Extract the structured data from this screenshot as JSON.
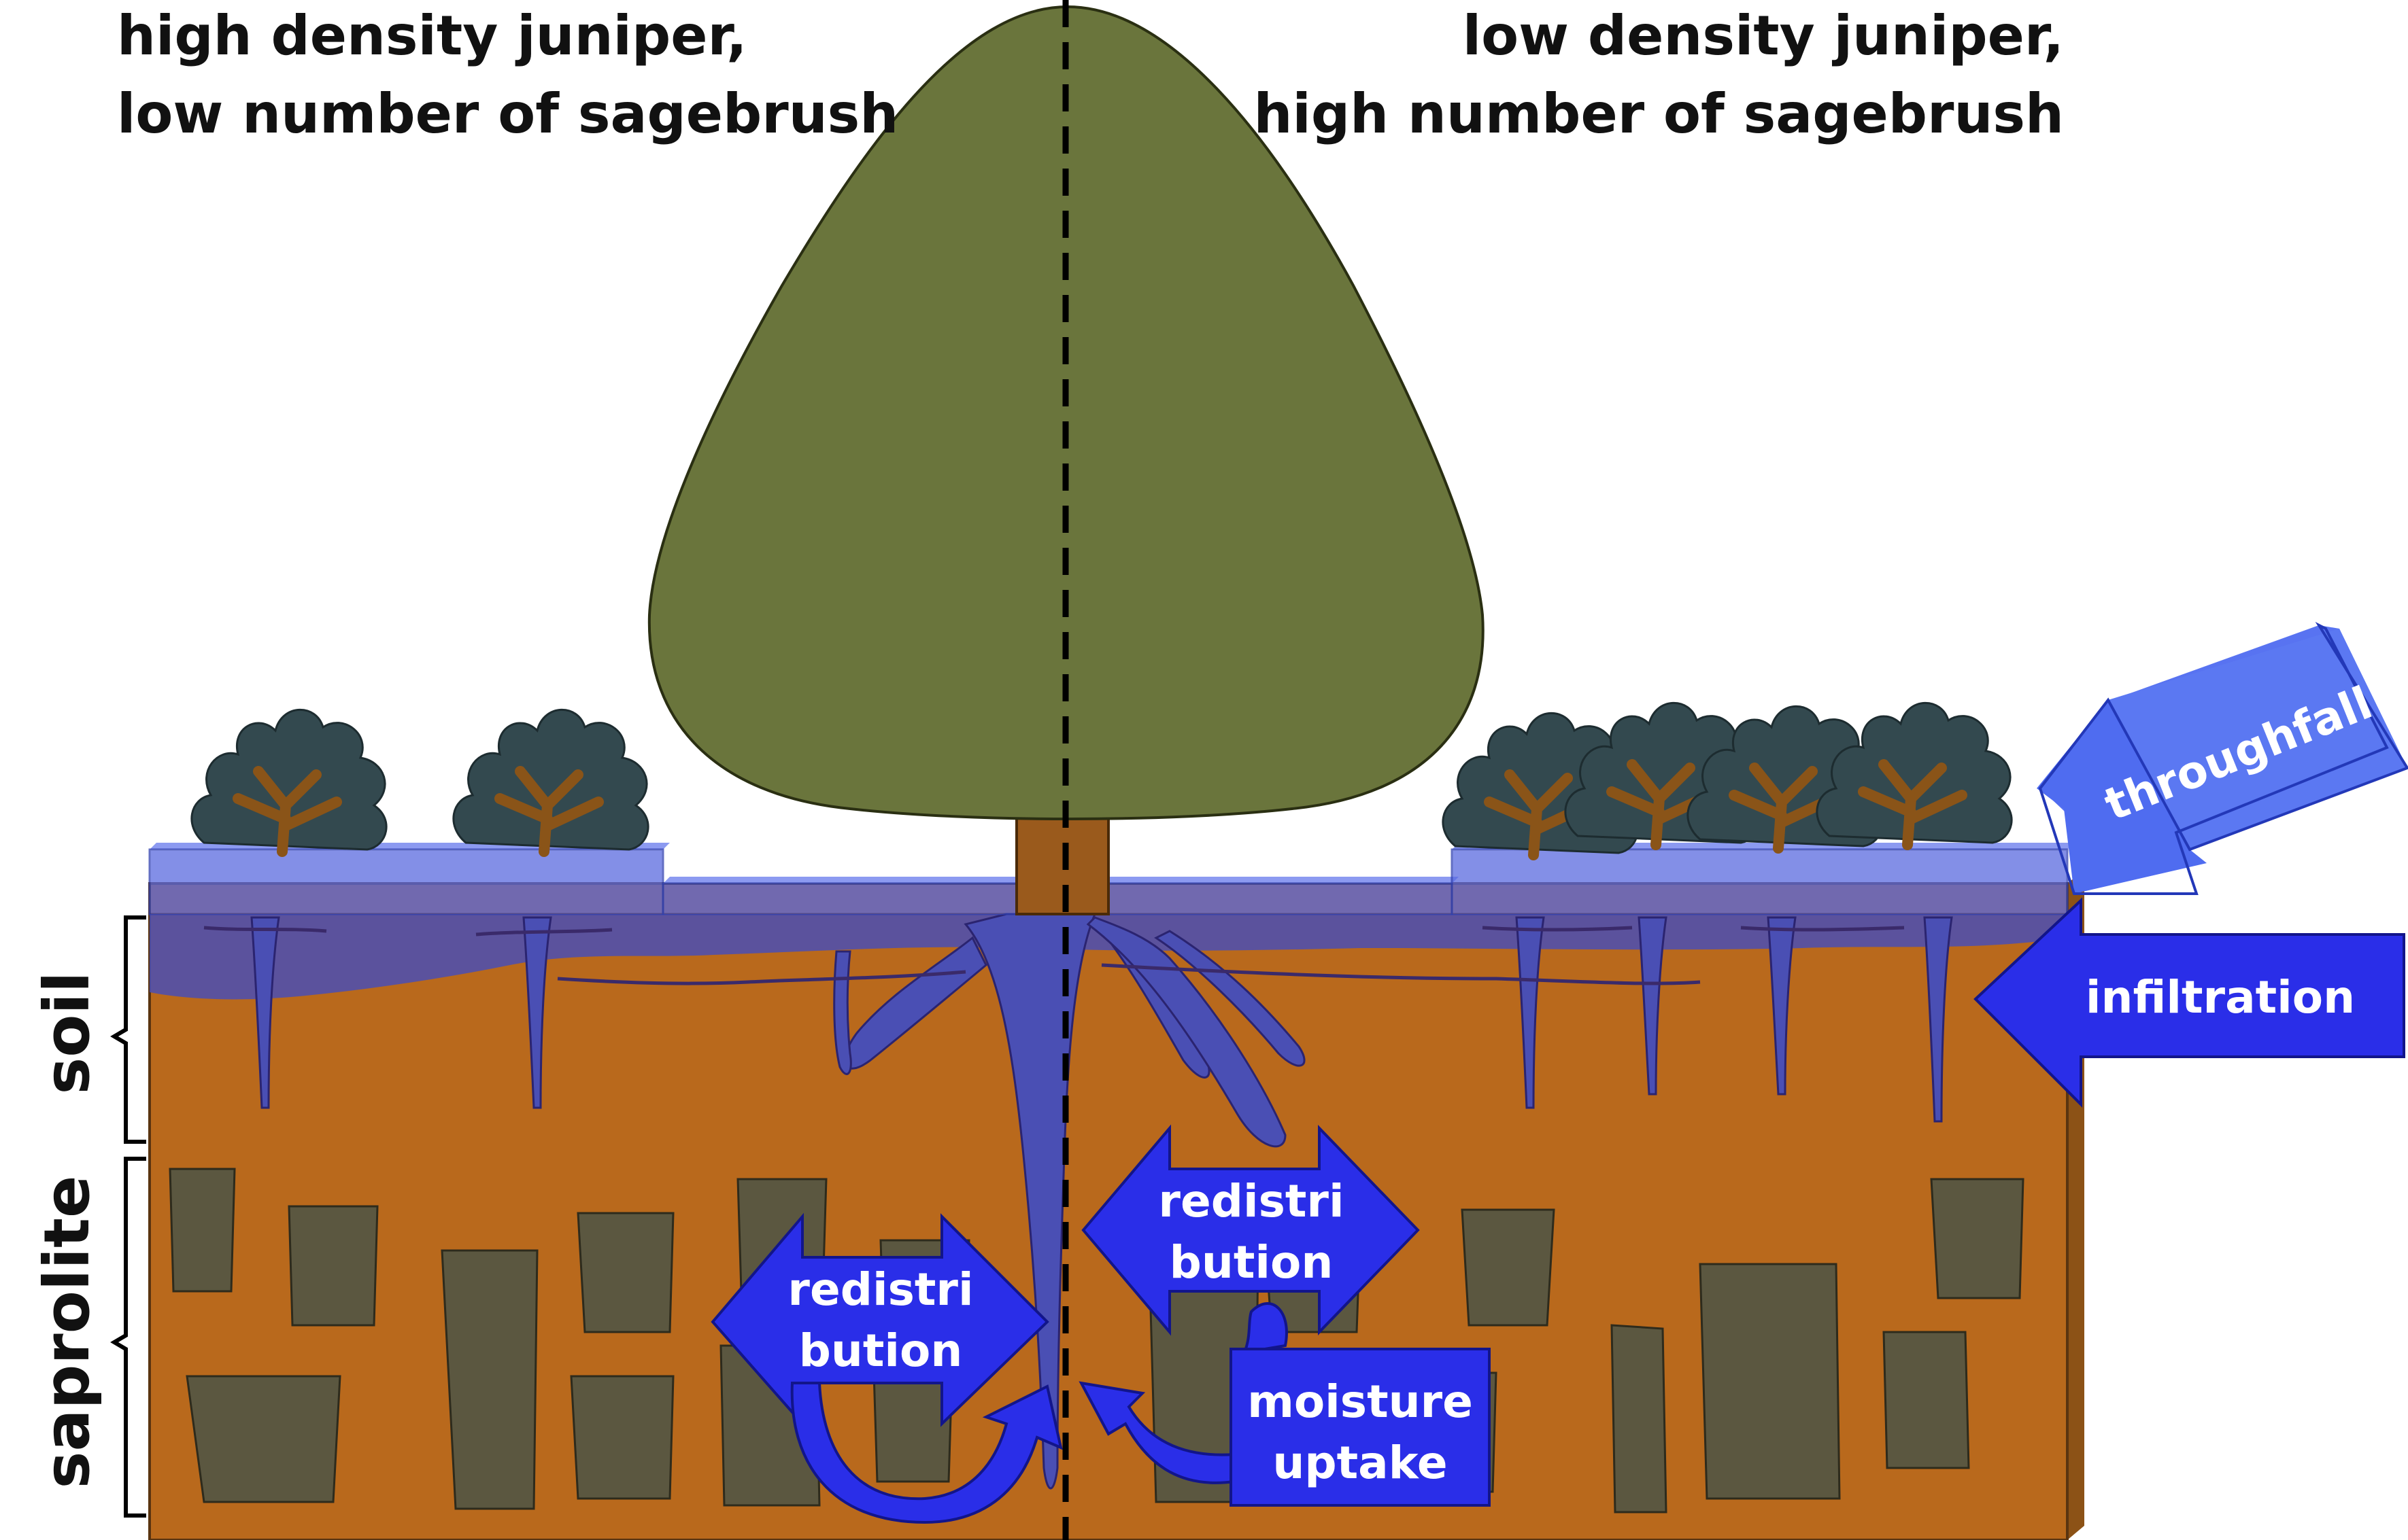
{
  "heading_left": [
    "high density juniper,",
    "low number of sagebrush"
  ],
  "heading_right": [
    "low density juniper,",
    "high number of sagebrush"
  ],
  "layers": {
    "soil": "soil",
    "saprolite": "saprolite"
  },
  "arrows": {
    "throughfall": "throughfall",
    "infiltration": "infiltration",
    "redistribution_left": [
      "redistri",
      "bution"
    ],
    "redistribution_right": [
      "redistri",
      "bution"
    ],
    "moisture_uptake": [
      "moisture",
      "uptake"
    ]
  },
  "colors": {
    "soil": "#b9691c",
    "canopy": "#6a753c",
    "trunk": "#9a5a1c",
    "rock": "#5b5740",
    "shrub": "#33494f",
    "water": "#3b4cd8",
    "arrow": "#2a2ee8",
    "throughfall_arrow": "#4f6cf0"
  }
}
